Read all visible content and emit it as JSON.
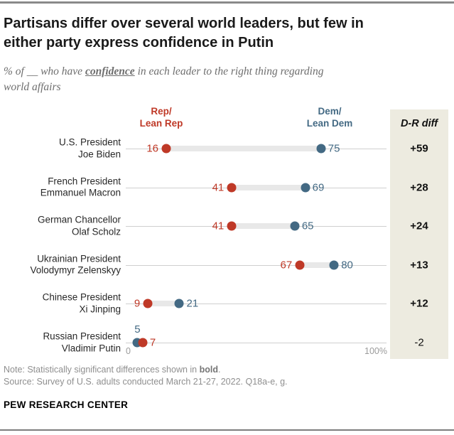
{
  "header": {
    "title_line1": "Partisans differ over several world leaders, but few in",
    "title_line2": "either party express confidence in Putin",
    "subtitle_prefix": "% of __ who have ",
    "subtitle_emphasis": "confidence",
    "subtitle_suffix_line1": " in each leader to the right thing regarding",
    "subtitle_line2": "world affairs"
  },
  "legend": {
    "rep_label": "Rep/\nLean Rep",
    "dem_label": "Dem/\nLean Dem",
    "rep_color": "#bf3927",
    "dem_color": "#436983"
  },
  "diff_column": {
    "header": "D-R diff",
    "bg_color": "#edebe0"
  },
  "chart_data": {
    "type": "dumbbell",
    "title": "Partisans differ over several world leaders, but few in either party express confidence in Putin",
    "x_axis": {
      "min": 0,
      "max": 100,
      "min_label": "0",
      "max_label": "100%"
    },
    "series_names": [
      "Rep/Lean Rep",
      "Dem/Lean Dem"
    ],
    "rows": [
      {
        "label_line1": "U.S. President",
        "label_line2": "Joe Biden",
        "rep": 16,
        "dem": 75,
        "diff": "+59",
        "diff_significant": true,
        "rep_label_pos": "left",
        "dem_label_pos": "right"
      },
      {
        "label_line1": "French President",
        "label_line2": "Emmanuel Macron",
        "rep": 41,
        "dem": 69,
        "diff": "+28",
        "diff_significant": true,
        "rep_label_pos": "left",
        "dem_label_pos": "right"
      },
      {
        "label_line1": "German Chancellor",
        "label_line2": "Olaf Scholz",
        "rep": 41,
        "dem": 65,
        "diff": "+24",
        "diff_significant": true,
        "rep_label_pos": "left",
        "dem_label_pos": "right"
      },
      {
        "label_line1": "Ukrainian President",
        "label_line2": "Volodymyr Zelenskyy",
        "rep": 67,
        "dem": 80,
        "diff": "+13",
        "diff_significant": true,
        "rep_label_pos": "left",
        "dem_label_pos": "right"
      },
      {
        "label_line1": "Chinese President",
        "label_line2": "Xi Jinping",
        "rep": 9,
        "dem": 21,
        "diff": "+12",
        "diff_significant": true,
        "rep_label_pos": "left",
        "dem_label_pos": "right"
      },
      {
        "label_line1": "Russian President",
        "label_line2": "Vladimir Putin",
        "rep": 7,
        "dem": 5,
        "diff": "-2",
        "diff_significant": false,
        "rep_label_pos": "right",
        "dem_label_pos": "above"
      }
    ]
  },
  "footer": {
    "note_prefix": "Note: Statistically significant differences shown in ",
    "note_bold": "bold",
    "note_suffix": ".",
    "source": "Source: Survey of U.S. adults conducted March 21-27, 2022. Q18a-e, g.",
    "brand": "PEW RESEARCH CENTER"
  }
}
